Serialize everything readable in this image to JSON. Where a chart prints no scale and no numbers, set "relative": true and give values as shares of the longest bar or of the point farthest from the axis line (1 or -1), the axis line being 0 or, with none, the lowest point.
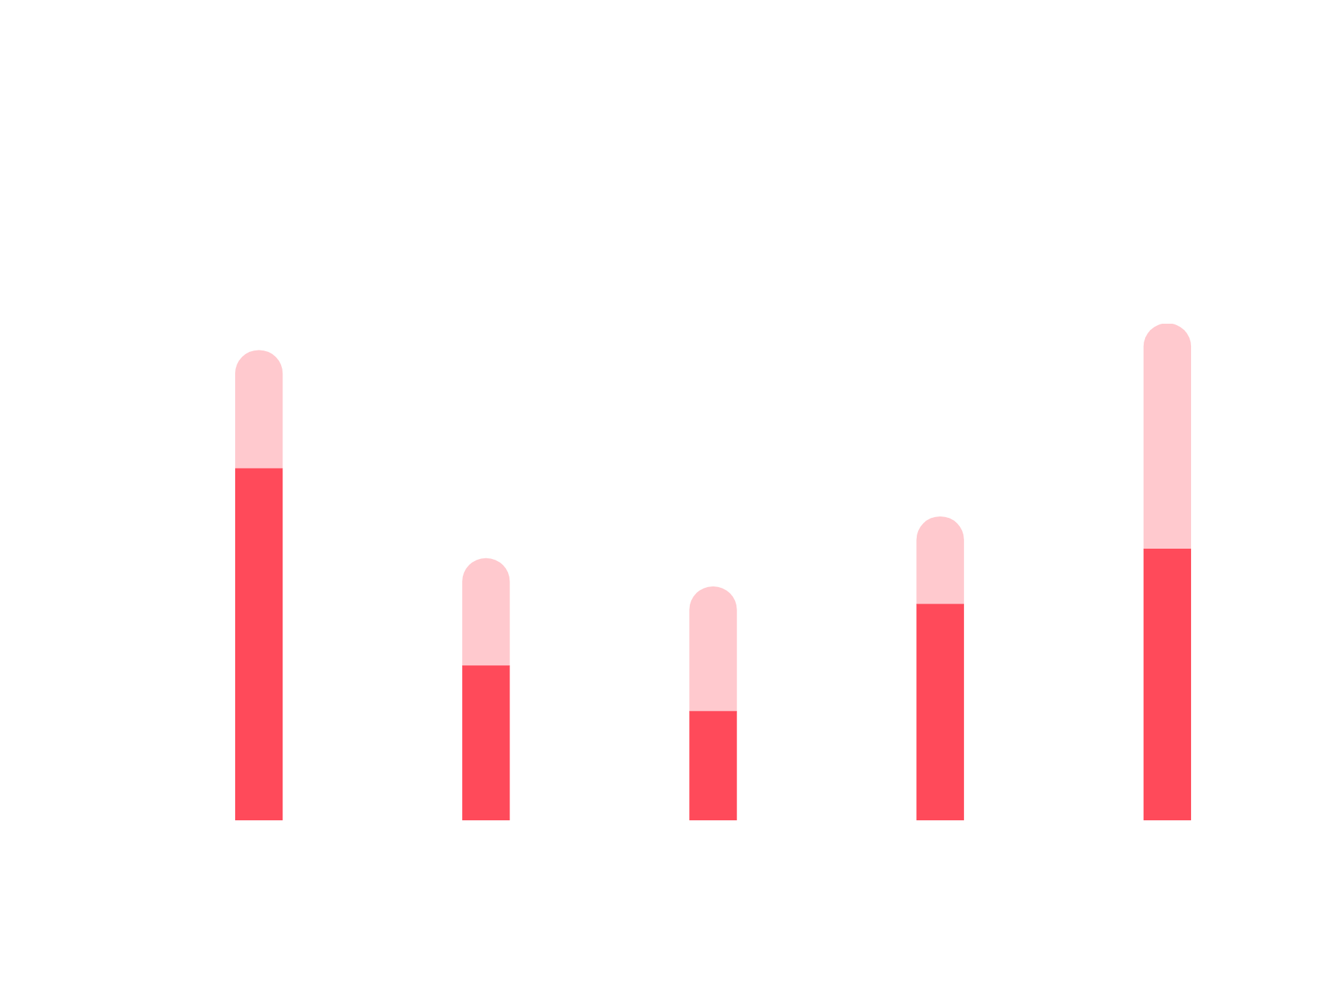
{
  "chart_data": {
    "type": "bar",
    "relative": true,
    "stacked": true,
    "categories": [
      null,
      null,
      null,
      null,
      null
    ],
    "series": [
      {
        "color": "#ff4a5a",
        "values": [
          0.708,
          0.311,
          0.219,
          0.435,
          0.546
        ]
      },
      {
        "color": "#ffc9ce",
        "values": [
          0.238,
          0.216,
          0.251,
          0.176,
          0.454
        ]
      }
    ],
    "grid": false,
    "legend": false
  }
}
